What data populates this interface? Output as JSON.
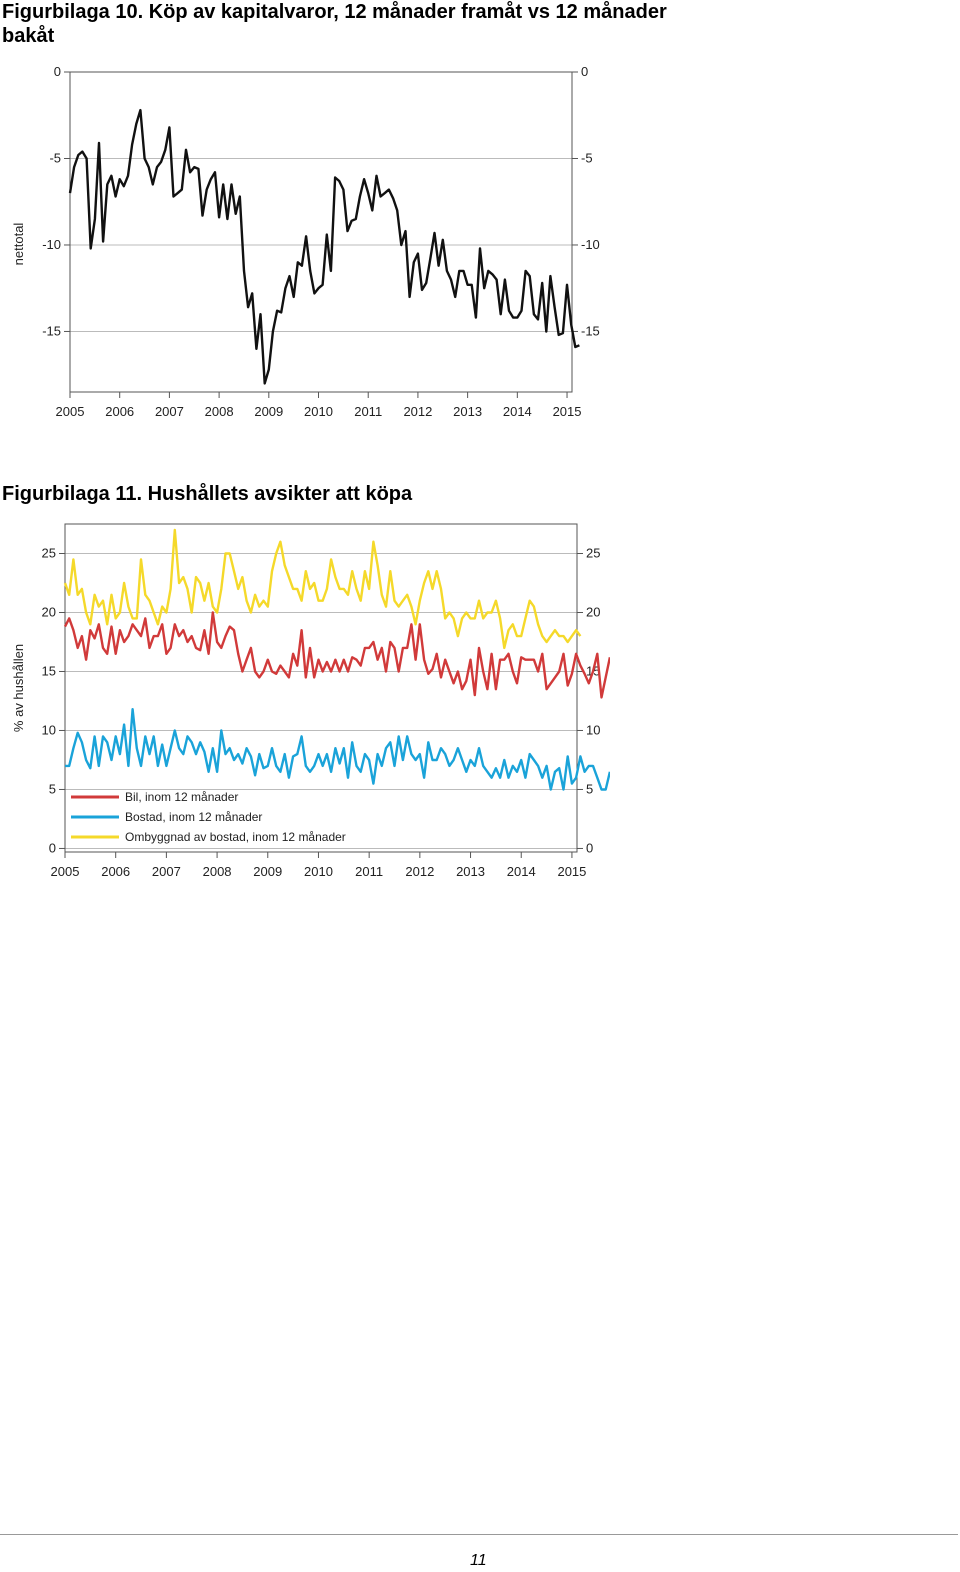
{
  "figures": [
    {
      "title": "Figurbilaga 10. Köp av kapitalvaror, 12 månader framåt vs 12 månader bakåt"
    },
    {
      "title": "Figurbilaga 11. Hushållets avsikter att köpa"
    }
  ],
  "page_number": "11",
  "chart_data": [
    {
      "type": "line",
      "title": "",
      "ylabel": "nettotal",
      "xlabel": "",
      "ylim": [
        -18.5,
        0
      ],
      "xlim": [
        2005,
        2015.1
      ],
      "yticks": [
        0,
        -5,
        -10,
        -15
      ],
      "ytick_labels": [
        "0",
        "-5",
        "-10",
        "-15"
      ],
      "xticks": [
        "2005",
        "2006",
        "2007",
        "2008",
        "2009",
        "2010",
        "2011",
        "2012",
        "2013",
        "2014",
        "2015"
      ],
      "grid": true,
      "series": [
        {
          "color": "#111111",
          "x_start": 2005.0,
          "x_step": 0.08333,
          "values": [
            -7.0,
            -5.5,
            -4.8,
            -4.6,
            -5.0,
            -10.2,
            -8.5,
            -4.1,
            -9.8,
            -6.5,
            -6.0,
            -7.2,
            -6.2,
            -6.6,
            -6.0,
            -4.2,
            -3.0,
            -2.2,
            -5.0,
            -5.5,
            -6.5,
            -5.5,
            -5.2,
            -4.5,
            -3.2,
            -7.2,
            -7.0,
            -6.8,
            -4.5,
            -5.8,
            -5.5,
            -5.6,
            -8.3,
            -6.8,
            -6.2,
            -5.8,
            -8.4,
            -6.5,
            -8.5,
            -6.5,
            -8.2,
            -7.2,
            -11.5,
            -13.6,
            -12.8,
            -16.0,
            -14.0,
            -18.0,
            -17.2,
            -15.0,
            -13.8,
            -13.9,
            -12.5,
            -11.8,
            -13.0,
            -11.0,
            -11.2,
            -9.5,
            -11.5,
            -12.8,
            -12.5,
            -12.3,
            -9.4,
            -11.5,
            -6.1,
            -6.3,
            -6.8,
            -9.2,
            -8.6,
            -8.5,
            -7.2,
            -6.2,
            -7.0,
            -8.0,
            -6.0,
            -7.2,
            -7.0,
            -6.8,
            -7.3,
            -8.0,
            -10.0,
            -9.2,
            -13.0,
            -11.0,
            -10.5,
            -12.6,
            -12.2,
            -10.8,
            -9.3,
            -11.2,
            -9.7,
            -11.5,
            -12.0,
            -13.0,
            -11.5,
            -11.5,
            -12.3,
            -12.3,
            -14.2,
            -10.2,
            -12.5,
            -11.5,
            -11.7,
            -12.0,
            -14.0,
            -12.0,
            -13.8,
            -14.2,
            -14.2,
            -13.8,
            -11.5,
            -11.8,
            -14.0,
            -14.3,
            -12.2,
            -15.0,
            -11.8,
            -13.6,
            -15.2,
            -15.1,
            -12.3,
            -14.6,
            -15.9,
            -15.8
          ]
        }
      ]
    },
    {
      "type": "line",
      "title": "",
      "ylabel": "% av hushållen",
      "xlabel": "",
      "ylim": [
        -0.3,
        27.5
      ],
      "xlim": [
        2005,
        2015.1
      ],
      "yticks": [
        0,
        5,
        10,
        15,
        20,
        25
      ],
      "ytick_labels": [
        "0",
        "5",
        "10",
        "15",
        "20",
        "25"
      ],
      "xticks": [
        "2005",
        "2006",
        "2007",
        "2008",
        "2009",
        "2010",
        "2011",
        "2012",
        "2013",
        "2014",
        "2015"
      ],
      "grid": true,
      "legend_position": "bottom-left",
      "series": [
        {
          "name": "Bil, inom 12 månader",
          "color": "#d13a3a",
          "x_start": 2005.0,
          "x_step": 0.08333,
          "values": [
            18.8,
            19.5,
            18.5,
            17.0,
            18.0,
            16.0,
            18.5,
            17.8,
            19.0,
            17.0,
            16.5,
            18.8,
            16.5,
            18.5,
            17.5,
            18.0,
            19.0,
            18.5,
            18.0,
            19.5,
            17.0,
            18.0,
            18.0,
            19.0,
            16.5,
            17.0,
            19.0,
            18.0,
            18.5,
            17.5,
            18.0,
            17.0,
            16.8,
            18.5,
            16.5,
            20.0,
            17.5,
            17.0,
            18.0,
            18.8,
            18.5,
            16.5,
            15.0,
            16.0,
            17.0,
            15.0,
            14.5,
            15.0,
            16.0,
            15.0,
            14.8,
            15.5,
            15.0,
            14.5,
            16.5,
            15.5,
            18.5,
            14.5,
            17.0,
            14.5,
            16.0,
            15.0,
            15.8,
            15.0,
            16.0,
            15.0,
            16.0,
            15.0,
            16.2,
            16.0,
            15.5,
            17.0,
            17.0,
            17.5,
            16.0,
            17.0,
            15.0,
            17.5,
            17.0,
            15.0,
            17.0,
            17.0,
            19.0,
            16.0,
            19.0,
            16.0,
            14.8,
            15.2,
            16.5,
            14.5,
            16.0,
            15.0,
            14.0,
            15.0,
            13.5,
            14.2,
            16.0,
            13.0,
            17.0,
            15.0,
            13.5,
            16.5,
            13.5,
            16.0,
            16.0,
            16.5,
            15.0,
            14.0,
            16.2,
            16.0,
            16.0,
            16.0,
            15.0,
            16.5,
            13.5,
            14.0,
            14.5,
            15.0,
            16.5,
            13.8,
            14.8,
            16.5,
            15.5,
            14.8,
            14.0,
            15.0,
            16.5,
            12.8,
            14.5,
            16.2
          ]
        },
        {
          "name": "Bostad, inom 12 månader",
          "color": "#1aa3d9",
          "x_start": 2005.0,
          "x_step": 0.08333,
          "values": [
            7.0,
            7.0,
            8.5,
            9.8,
            9.0,
            7.5,
            6.8,
            9.5,
            7.0,
            9.5,
            9.0,
            7.5,
            9.5,
            8.0,
            10.5,
            7.0,
            11.8,
            8.5,
            7.0,
            9.5,
            8.0,
            9.5,
            7.0,
            8.8,
            7.0,
            8.5,
            10.0,
            8.5,
            8.0,
            9.5,
            9.0,
            8.0,
            9.0,
            8.2,
            6.5,
            8.5,
            6.5,
            10.0,
            8.0,
            8.5,
            7.5,
            8.0,
            7.2,
            8.5,
            7.8,
            6.2,
            8.0,
            6.8,
            7.0,
            8.5,
            7.0,
            6.5,
            8.0,
            6.0,
            7.8,
            8.0,
            9.5,
            7.0,
            6.5,
            7.0,
            8.0,
            7.0,
            8.0,
            6.5,
            8.5,
            7.2,
            8.5,
            6.0,
            9.0,
            7.0,
            6.5,
            8.0,
            7.5,
            5.5,
            8.0,
            7.0,
            8.5,
            9.0,
            7.0,
            9.5,
            7.5,
            9.5,
            8.0,
            7.5,
            8.0,
            6.0,
            9.0,
            7.5,
            7.5,
            8.5,
            8.0,
            7.0,
            7.5,
            8.5,
            7.5,
            6.5,
            7.5,
            7.0,
            8.5,
            7.0,
            6.5,
            6.0,
            6.8,
            6.0,
            7.5,
            6.0,
            7.0,
            6.5,
            7.5,
            6.0,
            8.0,
            7.5,
            7.0,
            6.0,
            7.0,
            5.0,
            6.5,
            6.8,
            5.0,
            7.8,
            5.5,
            6.0,
            7.8,
            6.5,
            7.0,
            7.0,
            6.0,
            5.0,
            5.0,
            6.5
          ]
        },
        {
          "name": "Ombyggnad av bostad, inom 12 månader",
          "color": "#f5d92a",
          "x_start": 2005.0,
          "x_step": 0.08333,
          "values": [
            22.5,
            21.5,
            24.5,
            21.5,
            22.0,
            20.0,
            19.0,
            21.5,
            20.5,
            21.0,
            19.0,
            21.5,
            19.5,
            20.0,
            22.5,
            20.5,
            19.5,
            19.5,
            24.5,
            21.5,
            21.0,
            20.0,
            19.0,
            20.5,
            20.0,
            22.0,
            27.0,
            22.5,
            23.0,
            22.0,
            20.0,
            23.0,
            22.5,
            21.0,
            22.5,
            20.5,
            20.0,
            22.0,
            25.0,
            25.0,
            23.5,
            22.0,
            23.0,
            21.0,
            20.0,
            21.5,
            20.5,
            21.0,
            20.5,
            23.5,
            25.0,
            26.0,
            24.0,
            23.0,
            22.0,
            22.0,
            21.0,
            23.5,
            22.0,
            22.5,
            21.0,
            21.0,
            22.0,
            24.5,
            23.0,
            22.0,
            22.0,
            21.5,
            23.5,
            22.0,
            21.0,
            23.5,
            22.0,
            26.0,
            24.0,
            21.5,
            20.5,
            23.5,
            21.0,
            20.5,
            21.0,
            21.5,
            20.5,
            19.0,
            21.0,
            22.5,
            23.5,
            22.0,
            23.5,
            22.0,
            19.5,
            20.0,
            19.5,
            18.0,
            19.5,
            20.0,
            19.5,
            19.5,
            21.0,
            19.5,
            20.0,
            20.0,
            21.0,
            19.5,
            17.0,
            18.5,
            19.0,
            18.0,
            18.0,
            19.5,
            21.0,
            20.5,
            19.0,
            18.0,
            17.5,
            18.0,
            18.5,
            18.0,
            18.0,
            17.5,
            18.0,
            18.5,
            18.0
          ]
        }
      ]
    }
  ]
}
